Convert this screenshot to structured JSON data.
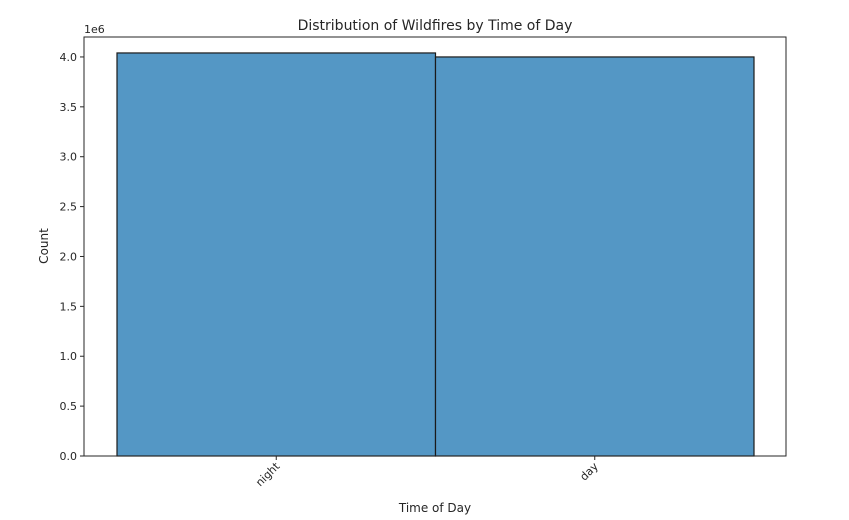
{
  "chart_data": {
    "type": "bar",
    "title": "Distribution of Wildfires by Time of Day",
    "xlabel": "Time of Day",
    "ylabel": "Count",
    "offset_text": "1e6",
    "categories": [
      "night",
      "day"
    ],
    "values": [
      4.04,
      4.0
    ],
    "ylim": [
      0,
      4.2
    ],
    "yticks": [
      0.0,
      0.5,
      1.0,
      1.5,
      2.0,
      2.5,
      3.0,
      3.5,
      4.0
    ],
    "ytick_labels": [
      "0.0",
      "0.5",
      "1.0",
      "1.5",
      "2.0",
      "2.5",
      "3.0",
      "3.5",
      "4.0"
    ],
    "bar_color": "#5497c5",
    "edge_color": "#1a1a1a",
    "grid": false,
    "legend": "none"
  }
}
